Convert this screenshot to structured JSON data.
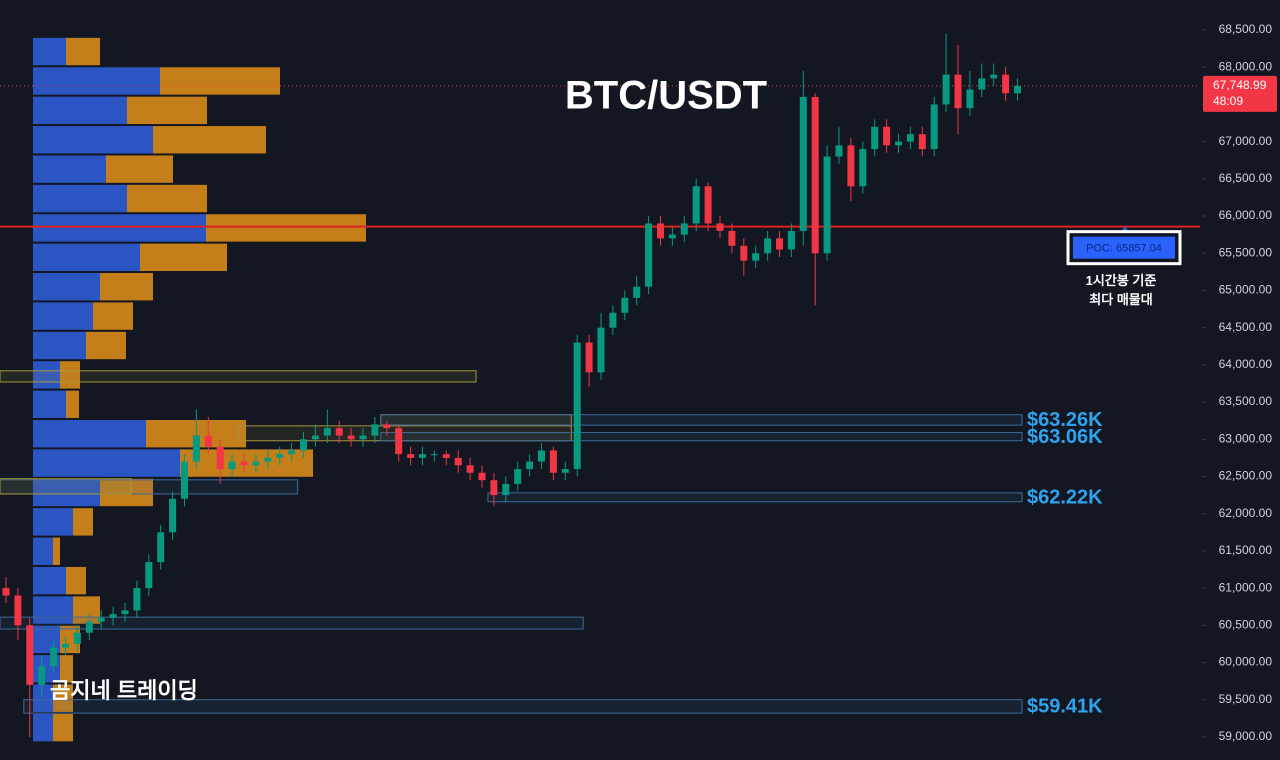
{
  "chart_data": {
    "type": "candlestick",
    "title": "BTC/USDT",
    "watermark": "곰지네 트레이딩",
    "ylim": [
      58690,
      68903
    ],
    "yticks": [
      {
        "value": 59000,
        "label": "59,000.00"
      },
      {
        "value": 59500,
        "label": "59,500.00"
      },
      {
        "value": 60000,
        "label": "60,000.00"
      },
      {
        "value": 60500,
        "label": "60,500.00"
      },
      {
        "value": 61000,
        "label": "61,000.00"
      },
      {
        "value": 61500,
        "label": "61,500.00"
      },
      {
        "value": 62000,
        "label": "62,000.00"
      },
      {
        "value": 62500,
        "label": "62,500.00"
      },
      {
        "value": 63000,
        "label": "63,000.00"
      },
      {
        "value": 63500,
        "label": "63,500.00"
      },
      {
        "value": 64000,
        "label": "64,000.00"
      },
      {
        "value": 64500,
        "label": "64,500.00"
      },
      {
        "value": 65000,
        "label": "65,000.00"
      },
      {
        "value": 65500,
        "label": "65,500.00"
      },
      {
        "value": 66000,
        "label": "66,000.00"
      },
      {
        "value": 66500,
        "label": "66,500.00"
      },
      {
        "value": 67000,
        "label": "67,000.00"
      },
      {
        "value": 67500,
        "label": "67,500.00"
      },
      {
        "value": 68000,
        "label": "68,000.00"
      },
      {
        "value": 68500,
        "label": "68,500.00"
      }
    ],
    "up_color": "#089981",
    "down_color": "#f23645",
    "open": [
      61000,
      60900,
      60500,
      59700,
      59950,
      60200,
      60250,
      60400,
      60550,
      60600,
      60650,
      60700,
      61000,
      61350,
      61750,
      62200,
      62700,
      63050,
      62900,
      62600,
      62700,
      62650,
      62700,
      62750,
      62800,
      62850,
      63000,
      63050,
      63150,
      63050,
      63000,
      63050,
      63200,
      63150,
      62800,
      62750,
      62800,
      62800,
      62750,
      62650,
      62550,
      62450,
      62250,
      62400,
      62600,
      62700,
      62850,
      62550,
      62600,
      64300,
      63900,
      64500,
      64700,
      64900,
      65050,
      65900,
      65700,
      65750,
      65900,
      66400,
      65900,
      65800,
      65600,
      65400,
      65500,
      65700,
      65550,
      65800,
      67600,
      65500,
      66800,
      66950,
      66400,
      66900,
      67200,
      66950,
      67000,
      67100,
      66900,
      67500,
      67900,
      67450,
      67700,
      67850,
      67900,
      67650
    ],
    "high": [
      61150,
      61000,
      60600,
      60100,
      60300,
      60350,
      60500,
      60650,
      60700,
      60750,
      60800,
      61100,
      61450,
      61850,
      62300,
      62800,
      63400,
      63300,
      63000,
      62800,
      62800,
      62800,
      62850,
      62900,
      62950,
      63100,
      63200,
      63400,
      63250,
      63150,
      63150,
      63300,
      63250,
      63200,
      62900,
      62900,
      62850,
      62850,
      62850,
      62750,
      62650,
      62550,
      62500,
      62700,
      62800,
      62950,
      62900,
      62700,
      64400,
      64400,
      64700,
      64800,
      65000,
      65200,
      66000,
      66000,
      65850,
      66000,
      66500,
      66450,
      66000,
      65900,
      65700,
      65600,
      65800,
      65800,
      65900,
      67950,
      67650,
      66950,
      67200,
      67050,
      67000,
      67300,
      67300,
      67100,
      67200,
      67200,
      67600,
      68450,
      68300,
      67950,
      68050,
      68050,
      68000,
      67850
    ],
    "low": [
      60800,
      60300,
      59000,
      59550,
      59850,
      60100,
      60150,
      60300,
      60450,
      60500,
      60550,
      60600,
      60900,
      61250,
      61650,
      62100,
      62600,
      62800,
      62400,
      62500,
      62550,
      62550,
      62600,
      62650,
      62700,
      62750,
      62900,
      62950,
      62950,
      62900,
      62900,
      62950,
      63050,
      62700,
      62650,
      62650,
      62700,
      62650,
      62550,
      62450,
      62350,
      62100,
      62150,
      62300,
      62500,
      62600,
      62450,
      62450,
      62500,
      63700,
      63800,
      64400,
      64600,
      64800,
      64950,
      65600,
      65600,
      65650,
      65800,
      65800,
      65700,
      65500,
      65200,
      65300,
      65400,
      65450,
      65450,
      65600,
      64800,
      65400,
      66700,
      66200,
      66300,
      66800,
      66850,
      66850,
      66900,
      66800,
      66800,
      67400,
      67100,
      67350,
      67600,
      67750,
      67550,
      67550
    ],
    "close": [
      60900,
      60500,
      59700,
      59950,
      60200,
      60250,
      60400,
      60550,
      60600,
      60650,
      60700,
      61000,
      61350,
      61750,
      62200,
      62700,
      63050,
      62900,
      62600,
      62700,
      62650,
      62700,
      62750,
      62800,
      62850,
      63000,
      63050,
      63150,
      63050,
      63000,
      63050,
      63200,
      63150,
      62800,
      62750,
      62800,
      62800,
      62750,
      62650,
      62550,
      62450,
      62250,
      62400,
      62600,
      62700,
      62850,
      62550,
      62600,
      64300,
      63900,
      64500,
      64700,
      64900,
      65050,
      65900,
      65700,
      65750,
      65900,
      66400,
      65900,
      65800,
      65600,
      65400,
      65500,
      65700,
      65550,
      65800,
      67600,
      65500,
      66800,
      66950,
      66400,
      66900,
      67200,
      66950,
      67000,
      67100,
      66900,
      67500,
      67900,
      67450,
      67700,
      67850,
      67900,
      67650,
      67748.99
    ],
    "last_price": {
      "value": 67748.99,
      "label": "67,748.99",
      "countdown": "48:09"
    },
    "volume_profile": {
      "buy_color": "#2f5bd3",
      "sell_color": "#d4881a",
      "levels": [
        68210,
        67815,
        67420,
        67025,
        66630,
        66235,
        65840,
        65445,
        65050,
        64655,
        64260,
        63865,
        63470,
        63075,
        62680,
        62285,
        61890,
        61495,
        61100,
        60705,
        60310,
        59915,
        59520,
        59125
      ],
      "buy": [
        33,
        127,
        94,
        120,
        73,
        94,
        173,
        107,
        67,
        60,
        53,
        27,
        33,
        113,
        147,
        67,
        40,
        20,
        33,
        40,
        27,
        27,
        20,
        20
      ],
      "sell": [
        34,
        120,
        80,
        113,
        67,
        80,
        160,
        87,
        53,
        40,
        40,
        20,
        13,
        100,
        133,
        53,
        20,
        7,
        20,
        27,
        20,
        13,
        20,
        20
      ]
    },
    "poc": {
      "value": 65857.04,
      "label": "POC: 65857.04",
      "color": "#e02020",
      "note": [
        "1시간봉 기준",
        "최다 매물대"
      ]
    },
    "zone_color": "#3d6b99",
    "zones": [
      {
        "label": "$63.26K",
        "low": 63190,
        "high": 63330,
        "start": 32
      },
      {
        "label": "$63.06K",
        "low": 62980,
        "high": 63090,
        "start": 32
      },
      {
        "label": "$62.22K",
        "low": 62160,
        "high": 62280,
        "start": 41
      },
      {
        "label": "$59.41K",
        "low": 59320,
        "high": 59500,
        "start": 2
      }
    ],
    "boxes": [
      {
        "low": 60450,
        "high": 60610,
        "start": 0,
        "end": 48,
        "color": "#3d6b99"
      },
      {
        "low": 62265,
        "high": 62455,
        "start": 0,
        "end": 24,
        "color": "#3d6b99"
      },
      {
        "low": 63770,
        "high": 63920,
        "start": 0,
        "end": 39,
        "color": "#a8983a"
      },
      {
        "low": 62265,
        "high": 62470,
        "start": 0,
        "end": 10,
        "color": "#a8983a"
      },
      {
        "low": 63190,
        "high": 63330,
        "start": 32,
        "end": 47,
        "color": "#a8983a"
      },
      {
        "low": 62980,
        "high": 63180,
        "start": 20,
        "end": 47,
        "color": "#a8983a"
      }
    ]
  }
}
